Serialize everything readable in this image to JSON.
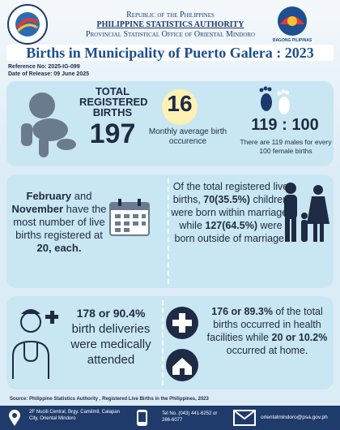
{
  "header": {
    "line1": "Republic of the Philippines",
    "line2": "PHILIPPINE STATISTICS AUTHORITY",
    "line3": "Provincial Statistical Office of Oriental Mindoro",
    "badge": "BAGONG PILIPINAS"
  },
  "title": "Births in Municipality of Puerto Galera : 2023",
  "reference": "Reference No: 2025-IG-099",
  "release": "Date of Release: 09 June 2025",
  "total": {
    "label": "TOTAL REGISTERED BIRTHS",
    "value": "197"
  },
  "average": {
    "value": "16",
    "label": "Monthly average birth occurence"
  },
  "ratio": {
    "value": "119 : 100",
    "label": "There are 119 males for every 100 female births"
  },
  "months": [
    "February",
    " and ",
    "November",
    " have the most number of live births registered at ",
    "20, each."
  ],
  "marriage": [
    "Of the total registered live births, ",
    "70(35.5%)",
    " children were born within marriage, while ",
    "127(64.5%)",
    " were born outside of marriage."
  ],
  "attended": [
    "178 or 90.4%",
    "birth deliveries were medically attended"
  ],
  "facility": [
    "176 or 89.3%",
    " of the total births occurred in health facilities while ",
    "20 or 10.2%",
    " occurred at home."
  ],
  "source": "Source: Philippine Statistics Authority , Registered Live Births in the Philippines, 2023",
  "footer": {
    "address": "2F Nuciti Central, Brgy. Camilmil, Calapan City, Oriental Mindoro",
    "phone": "Tel No. (043) 441-6252 or 286-6077",
    "email": "orientalmindoro@psa.gov.ph"
  }
}
